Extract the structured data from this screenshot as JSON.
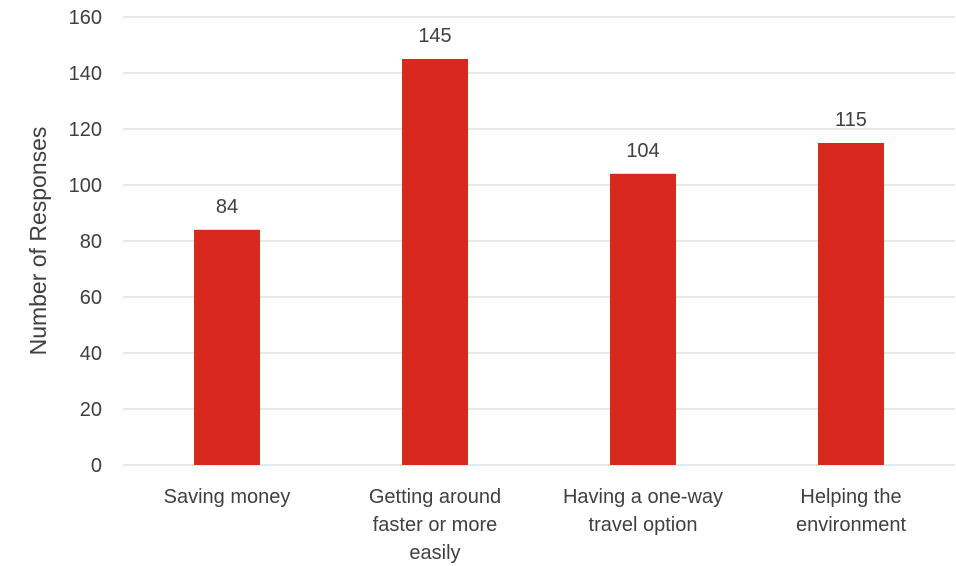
{
  "chart_data": {
    "type": "bar",
    "categories": [
      [
        "Saving money"
      ],
      [
        "Getting around",
        "faster or more",
        "easily"
      ],
      [
        "Having a one-way",
        "travel option"
      ],
      [
        "Helping the",
        "environment"
      ]
    ],
    "values": [
      84,
      145,
      104,
      115
    ],
    "ylabel": "Number of Responses",
    "ylim": [
      0,
      160
    ],
    "yticks": [
      0,
      20,
      40,
      60,
      80,
      100,
      120,
      140,
      160
    ],
    "grid": true,
    "bar_color": "#d9281e",
    "text_color": "#404040",
    "grid_color": "#d9d9d9"
  }
}
